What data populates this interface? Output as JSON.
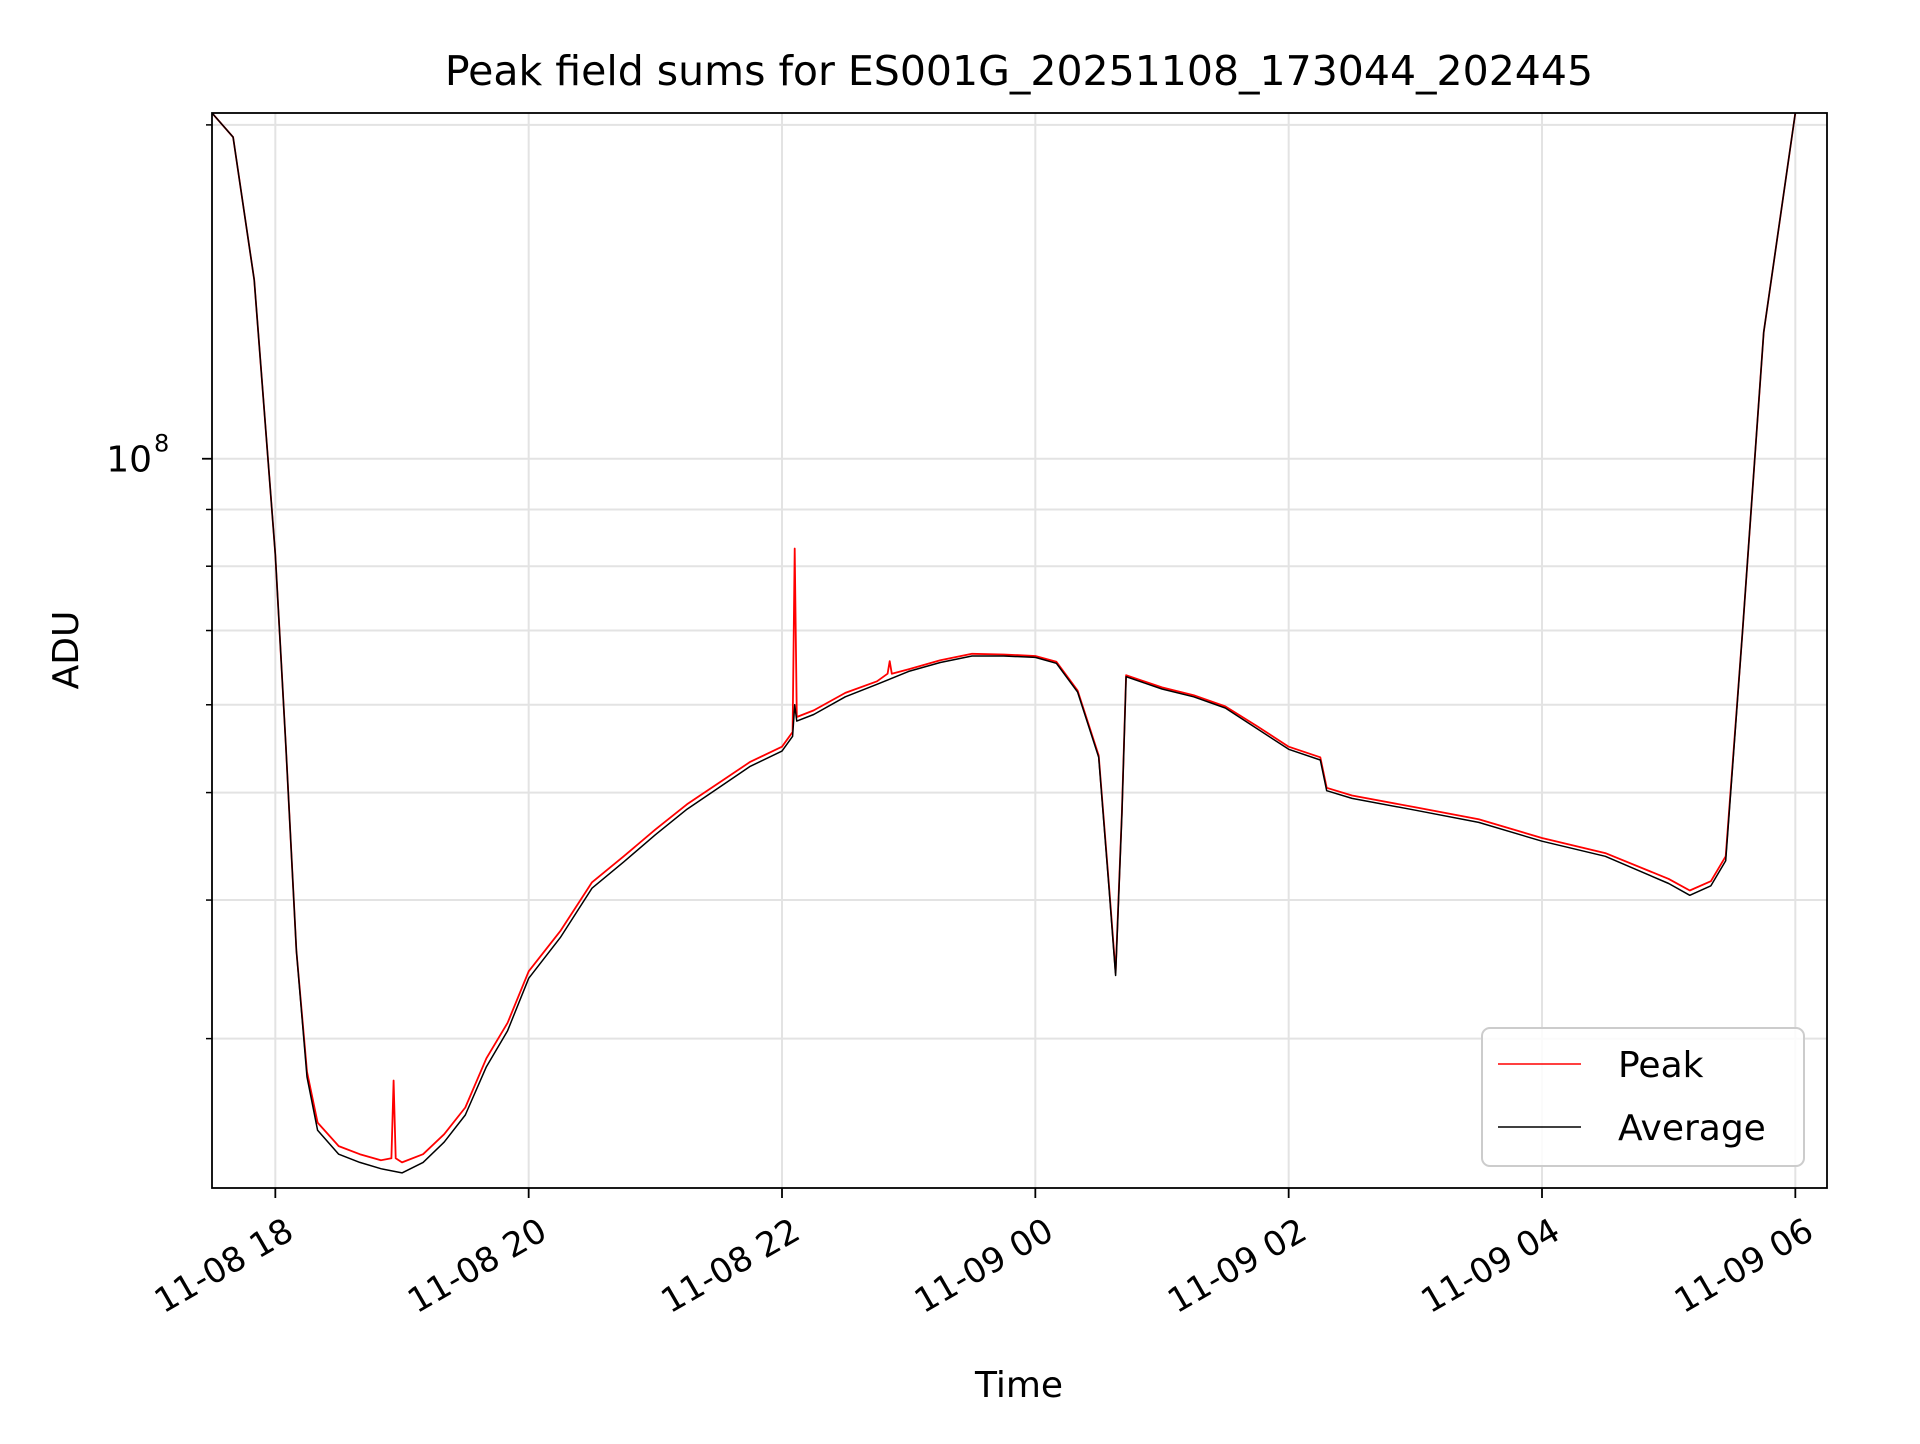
{
  "chart_data": {
    "type": "line",
    "title": "Peak field sums for ES001G_20251108_173044_202445",
    "xlabel": "Time",
    "ylabel": "ADU",
    "yscale": "log",
    "xlim": [
      "2025-11-08 17:30",
      "2025-11-09 06:15"
    ],
    "ylim": [
      22000000,
      205000000
    ],
    "grid": true,
    "legend_position": "lower-right",
    "x_ticks": [
      {
        "value": "2025-11-08 18:00",
        "label": "11-08 18"
      },
      {
        "value": "2025-11-08 20:00",
        "label": "11-08 20"
      },
      {
        "value": "2025-11-08 22:00",
        "label": "11-08 22"
      },
      {
        "value": "2025-11-09 00:00",
        "label": "11-09 00"
      },
      {
        "value": "2025-11-09 02:00",
        "label": "11-09 02"
      },
      {
        "value": "2025-11-09 04:00",
        "label": "11-09 04"
      },
      {
        "value": "2025-11-09 06:00",
        "label": "11-09 06"
      }
    ],
    "y_major_ticks": [
      {
        "value": 100000000,
        "base": "10",
        "exponent": "8"
      }
    ],
    "y_minor_ticks": [
      30000000,
      40000000,
      50000000,
      60000000,
      70000000,
      80000000,
      90000000,
      200000000
    ],
    "series": [
      {
        "name": "Peak",
        "color": "#ff0000",
        "points": [
          [
            "2025-11-08 17:30",
            205000000
          ],
          [
            "2025-11-08 17:40",
            195000000
          ],
          [
            "2025-11-08 17:50",
            145000000
          ],
          [
            "2025-11-08 18:00",
            82000000
          ],
          [
            "2025-11-08 18:05",
            55000000
          ],
          [
            "2025-11-08 18:10",
            36000000
          ],
          [
            "2025-11-08 18:15",
            28000000
          ],
          [
            "2025-11-08 18:20",
            25200000
          ],
          [
            "2025-11-08 18:30",
            24000000
          ],
          [
            "2025-11-08 18:40",
            23600000
          ],
          [
            "2025-11-08 18:50",
            23300000
          ],
          [
            "2025-11-08 18:55",
            23400000
          ],
          [
            "2025-11-08 18:56",
            27500000
          ],
          [
            "2025-11-08 18:57",
            23400000
          ],
          [
            "2025-11-08 19:00",
            23200000
          ],
          [
            "2025-11-08 19:10",
            23600000
          ],
          [
            "2025-11-08 19:20",
            24600000
          ],
          [
            "2025-11-08 19:30",
            26000000
          ],
          [
            "2025-11-08 19:40",
            28800000
          ],
          [
            "2025-11-08 19:50",
            31000000
          ],
          [
            "2025-11-08 20:00",
            34500000
          ],
          [
            "2025-11-08 20:15",
            37500000
          ],
          [
            "2025-11-08 20:30",
            41500000
          ],
          [
            "2025-11-08 20:45",
            43800000
          ],
          [
            "2025-11-08 21:00",
            46300000
          ],
          [
            "2025-11-08 21:15",
            48800000
          ],
          [
            "2025-11-08 21:30",
            51000000
          ],
          [
            "2025-11-08 21:45",
            53300000
          ],
          [
            "2025-11-08 22:00",
            55000000
          ],
          [
            "2025-11-08 22:05",
            56700000
          ],
          [
            "2025-11-08 22:06",
            83000000
          ],
          [
            "2025-11-08 22:07",
            58500000
          ],
          [
            "2025-11-08 22:15",
            59300000
          ],
          [
            "2025-11-08 22:30",
            61500000
          ],
          [
            "2025-11-08 22:45",
            63000000
          ],
          [
            "2025-11-08 22:50",
            64000000
          ],
          [
            "2025-11-08 22:51",
            65700000
          ],
          [
            "2025-11-08 22:52",
            64000000
          ],
          [
            "2025-11-08 23:00",
            64600000
          ],
          [
            "2025-11-08 23:15",
            65800000
          ],
          [
            "2025-11-08 23:30",
            66700000
          ],
          [
            "2025-11-08 23:45",
            66600000
          ],
          [
            "2025-11-09 00:00",
            66400000
          ],
          [
            "2025-11-09 00:10",
            65600000
          ],
          [
            "2025-11-09 00:20",
            61800000
          ],
          [
            "2025-11-09 00:30",
            54000000
          ],
          [
            "2025-11-09 00:35",
            41000000
          ],
          [
            "2025-11-09 00:38",
            34400000
          ],
          [
            "2025-11-09 00:41",
            48000000
          ],
          [
            "2025-11-09 00:43",
            63800000
          ],
          [
            "2025-11-09 01:00",
            62200000
          ],
          [
            "2025-11-09 01:15",
            61200000
          ],
          [
            "2025-11-09 01:30",
            59800000
          ],
          [
            "2025-11-09 01:45",
            57400000
          ],
          [
            "2025-11-09 02:00",
            55000000
          ],
          [
            "2025-11-09 02:15",
            53800000
          ],
          [
            "2025-11-09 02:18",
            50500000
          ],
          [
            "2025-11-09 02:30",
            49700000
          ],
          [
            "2025-11-09 03:00",
            48500000
          ],
          [
            "2025-11-09 03:30",
            47300000
          ],
          [
            "2025-11-09 04:00",
            45500000
          ],
          [
            "2025-11-09 04:30",
            44100000
          ],
          [
            "2025-11-09 05:00",
            41800000
          ],
          [
            "2025-11-09 05:10",
            40800000
          ],
          [
            "2025-11-09 05:20",
            41600000
          ],
          [
            "2025-11-09 05:27",
            43800000
          ],
          [
            "2025-11-09 05:35",
            70000000
          ],
          [
            "2025-11-09 05:45",
            130000000
          ],
          [
            "2025-11-09 06:00",
            205000000
          ]
        ]
      },
      {
        "name": "Average",
        "color": "#000000",
        "points": [
          [
            "2025-11-08 17:30",
            205000000
          ],
          [
            "2025-11-08 17:40",
            195000000
          ],
          [
            "2025-11-08 17:50",
            145000000
          ],
          [
            "2025-11-08 18:00",
            82000000
          ],
          [
            "2025-11-08 18:05",
            55000000
          ],
          [
            "2025-11-08 18:10",
            36000000
          ],
          [
            "2025-11-08 18:15",
            27700000
          ],
          [
            "2025-11-08 18:20",
            24800000
          ],
          [
            "2025-11-08 18:30",
            23600000
          ],
          [
            "2025-11-08 18:40",
            23200000
          ],
          [
            "2025-11-08 18:50",
            22900000
          ],
          [
            "2025-11-08 19:00",
            22700000
          ],
          [
            "2025-11-08 19:10",
            23200000
          ],
          [
            "2025-11-08 19:20",
            24200000
          ],
          [
            "2025-11-08 19:30",
            25600000
          ],
          [
            "2025-11-08 19:40",
            28300000
          ],
          [
            "2025-11-08 19:50",
            30500000
          ],
          [
            "2025-11-08 20:00",
            34000000
          ],
          [
            "2025-11-08 20:15",
            37000000
          ],
          [
            "2025-11-08 20:30",
            41000000
          ],
          [
            "2025-11-08 20:45",
            43300000
          ],
          [
            "2025-11-08 21:00",
            45800000
          ],
          [
            "2025-11-08 21:15",
            48300000
          ],
          [
            "2025-11-08 21:30",
            50500000
          ],
          [
            "2025-11-08 21:45",
            52800000
          ],
          [
            "2025-11-08 22:00",
            54500000
          ],
          [
            "2025-11-08 22:05",
            56200000
          ],
          [
            "2025-11-08 22:06",
            60000000
          ],
          [
            "2025-11-08 22:07",
            58000000
          ],
          [
            "2025-11-08 22:15",
            58800000
          ],
          [
            "2025-11-08 22:30",
            61000000
          ],
          [
            "2025-11-08 22:45",
            62600000
          ],
          [
            "2025-11-08 23:00",
            64300000
          ],
          [
            "2025-11-08 23:15",
            65500000
          ],
          [
            "2025-11-08 23:30",
            66400000
          ],
          [
            "2025-11-08 23:45",
            66400000
          ],
          [
            "2025-11-09 00:00",
            66200000
          ],
          [
            "2025-11-09 00:10",
            65400000
          ],
          [
            "2025-11-09 00:20",
            61600000
          ],
          [
            "2025-11-09 00:30",
            53800000
          ],
          [
            "2025-11-09 00:35",
            40800000
          ],
          [
            "2025-11-09 00:38",
            34200000
          ],
          [
            "2025-11-09 00:41",
            47800000
          ],
          [
            "2025-11-09 00:43",
            63600000
          ],
          [
            "2025-11-09 01:00",
            62000000
          ],
          [
            "2025-11-09 01:15",
            61000000
          ],
          [
            "2025-11-09 01:30",
            59600000
          ],
          [
            "2025-11-09 01:45",
            57100000
          ],
          [
            "2025-11-09 02:00",
            54700000
          ],
          [
            "2025-11-09 02:15",
            53500000
          ],
          [
            "2025-11-09 02:18",
            50200000
          ],
          [
            "2025-11-09 02:30",
            49400000
          ],
          [
            "2025-11-09 03:00",
            48200000
          ],
          [
            "2025-11-09 03:30",
            47000000
          ],
          [
            "2025-11-09 04:00",
            45200000
          ],
          [
            "2025-11-09 04:30",
            43800000
          ],
          [
            "2025-11-09 05:00",
            41400000
          ],
          [
            "2025-11-09 05:10",
            40400000
          ],
          [
            "2025-11-09 05:20",
            41200000
          ],
          [
            "2025-11-09 05:27",
            43400000
          ],
          [
            "2025-11-09 05:35",
            70000000
          ],
          [
            "2025-11-09 05:45",
            130000000
          ],
          [
            "2025-11-09 06:00",
            205000000
          ]
        ]
      }
    ]
  }
}
